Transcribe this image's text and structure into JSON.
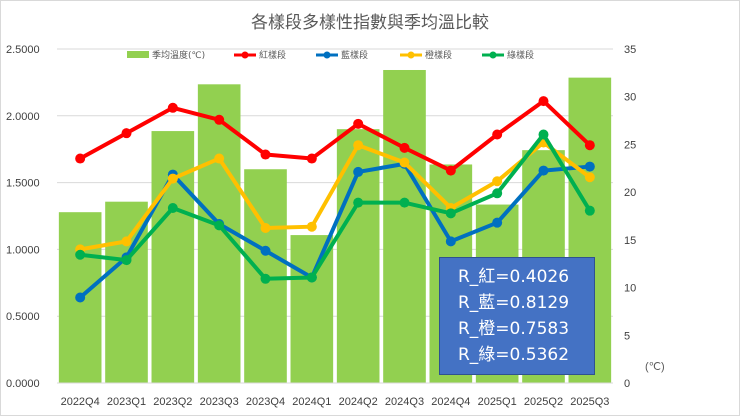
{
  "chart_data": {
    "type": "bar+line",
    "title": "各樣段多樣性指數與季均溫比較",
    "categories": [
      "2022Q4",
      "2023Q1",
      "2023Q2",
      "2023Q3",
      "2023Q4",
      "2024Q1",
      "2024Q2",
      "2024Q3",
      "2024Q4",
      "2025Q1",
      "2025Q2",
      "2025Q3"
    ],
    "left_axis": {
      "ylim": [
        0,
        2.5
      ],
      "ticks": [
        "0.0000",
        "0.5000",
        "1.0000",
        "1.5000",
        "2.0000",
        "2.5000"
      ]
    },
    "right_axis": {
      "ylim": [
        0,
        35
      ],
      "ticks": [
        "0",
        "5",
        "10",
        "15",
        "20",
        "25",
        "30",
        "35"
      ],
      "label": "(℃)"
    },
    "bar_series": {
      "name": "季均溫度(℃)",
      "color": "#92d050",
      "axis": "right",
      "values": [
        17.9,
        19.0,
        26.4,
        31.3,
        22.4,
        15.5,
        26.6,
        32.8,
        22.9,
        18.7,
        24.4,
        32.0
      ]
    },
    "series": [
      {
        "name": "紅樣段",
        "color": "#ff0000",
        "axis": "left",
        "values": [
          1.68,
          1.87,
          2.06,
          1.97,
          1.71,
          1.68,
          1.94,
          1.76,
          1.59,
          1.86,
          2.11,
          1.78
        ]
      },
      {
        "name": "藍樣段",
        "color": "#0070c0",
        "axis": "left",
        "values": [
          0.64,
          0.94,
          1.56,
          1.19,
          0.99,
          0.79,
          1.58,
          1.64,
          1.06,
          1.2,
          1.59,
          1.62
        ]
      },
      {
        "name": "橙樣段",
        "color": "#ffc000",
        "axis": "left",
        "values": [
          1.0,
          1.06,
          1.53,
          1.68,
          1.16,
          1.17,
          1.78,
          1.65,
          1.31,
          1.51,
          1.8,
          1.54
        ]
      },
      {
        "name": "綠樣段",
        "color": "#00b050",
        "axis": "left",
        "values": [
          0.96,
          0.92,
          1.31,
          1.18,
          0.78,
          0.79,
          1.35,
          1.35,
          1.27,
          1.42,
          1.86,
          1.29
        ]
      }
    ],
    "legend_position": "top",
    "grid": true,
    "annotation": [
      "R_紅=0.4026",
      "R_藍=0.8129",
      "R_橙=0.7583",
      "R_綠=0.5362"
    ]
  }
}
